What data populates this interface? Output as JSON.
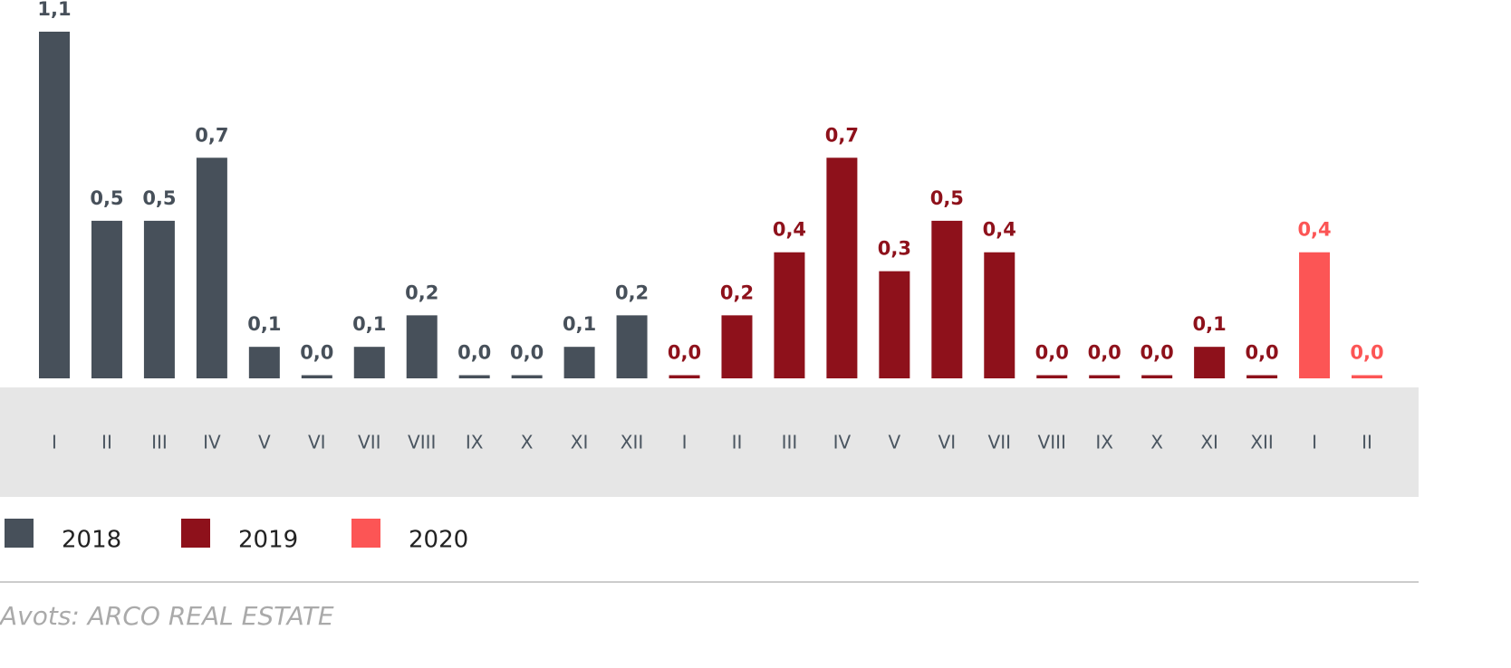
{
  "chart_data": {
    "type": "bar",
    "series": [
      {
        "name": "2018",
        "color": "#47505a",
        "categories": [
          "I",
          "II",
          "III",
          "IV",
          "V",
          "VI",
          "VII",
          "VIII",
          "IX",
          "X",
          "XI",
          "XII"
        ],
        "values": [
          1.1,
          0.5,
          0.5,
          0.7,
          0.1,
          0.01,
          0.1,
          0.2,
          0.01,
          0.01,
          0.1,
          0.2
        ],
        "value_labels": [
          "1,1",
          "0,5",
          "0,5",
          "0,7",
          "0,1",
          "0,0",
          "0,1",
          "0,2",
          "0,0",
          "0,0",
          "0,1",
          "0,2"
        ]
      },
      {
        "name": "2019",
        "color": "#8e111b",
        "categories": [
          "I",
          "II",
          "III",
          "IV",
          "V",
          "VI",
          "VII",
          "VIII",
          "IX",
          "X",
          "XI",
          "XII"
        ],
        "values": [
          0.01,
          0.2,
          0.4,
          0.7,
          0.34,
          0.5,
          0.4,
          0.01,
          0.01,
          0.01,
          0.1,
          0.01
        ],
        "value_labels": [
          "0,0",
          "0,2",
          "0,4",
          "0,7",
          "0,3",
          "0,5",
          "0,4",
          "0,0",
          "0,0",
          "0,0",
          "0,1",
          "0,0"
        ]
      },
      {
        "name": "2020",
        "color": "#fc5555",
        "categories": [
          "I",
          "II"
        ],
        "values": [
          0.4,
          0.01
        ],
        "value_labels": [
          "0,4",
          "0,0"
        ]
      }
    ],
    "source": "Avots: ARCO REAL ESTATE"
  }
}
